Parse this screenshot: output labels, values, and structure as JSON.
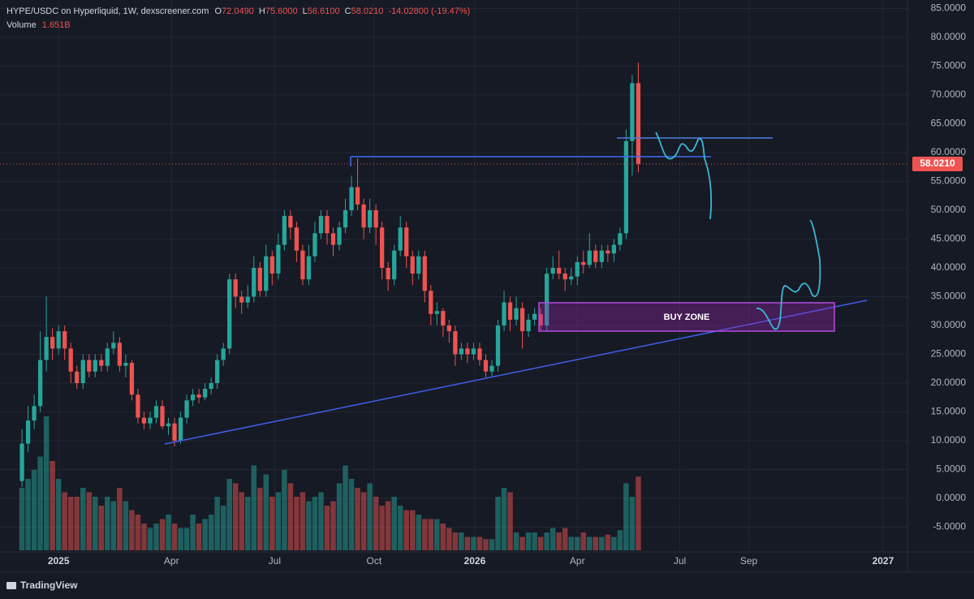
{
  "chart_data": {
    "type": "candlestick",
    "symbol": "HYPE/USDC on Hyperliquid, 1W, dexscreener.com",
    "ohlc": [
      "O",
      "72.0490",
      "H",
      "75.6000",
      "L",
      "56.6100",
      "C",
      "58.0210",
      "-14.02800 (-19.47%)"
    ],
    "volume_label": "Volume",
    "volume_last_label": "1.651B",
    "last_value_label": "58.0210",
    "annotation": "BUY ZONE",
    "brand": "TradingView",
    "up_color": "#26a69a",
    "down_color": "#ef5350",
    "grid": true,
    "ylim": [
      -9.3,
      86.48
    ],
    "yticks": [
      {
        "value": 85,
        "label": "85.0000"
      },
      {
        "value": 80,
        "label": "80.0000"
      },
      {
        "value": 75,
        "label": "75.0000"
      },
      {
        "value": 70,
        "label": "70.0000"
      },
      {
        "value": 65,
        "label": "65.0000"
      },
      {
        "value": 60,
        "label": "60.0000"
      },
      {
        "value": 55,
        "label": "55.0000"
      },
      {
        "value": 50,
        "label": "50.0000"
      },
      {
        "value": 45,
        "label": "45.0000"
      },
      {
        "value": 40,
        "label": "40.0000"
      },
      {
        "value": 35,
        "label": "35.0000"
      },
      {
        "value": 30,
        "label": "30.0000"
      },
      {
        "value": 25,
        "label": "25.0000"
      },
      {
        "value": 20,
        "label": "20.0000"
      },
      {
        "value": 15,
        "label": "15.0000"
      },
      {
        "value": 10,
        "label": "10.0000"
      },
      {
        "value": 5,
        "label": "5.0000"
      },
      {
        "value": 0,
        "label": "0.0000"
      },
      {
        "value": -5,
        "label": "-5.0000"
      }
    ],
    "xlim": [
      -3.6,
      145.1
    ],
    "xticks": [
      {
        "value": 6.0,
        "label": "2025"
      },
      {
        "value": 24.5,
        "label": "Apr"
      },
      {
        "value": 41.4,
        "label": "Jul"
      },
      {
        "value": 57.7,
        "label": "Oct"
      },
      {
        "value": 74.2,
        "label": "2026"
      },
      {
        "value": 91.0,
        "label": "Apr"
      },
      {
        "value": 107.8,
        "label": "Jul"
      },
      {
        "value": 119.1,
        "label": "Sep"
      },
      {
        "value": 141.1,
        "label": "2027"
      }
    ],
    "open": [
      3,
      9.5,
      13.5,
      16,
      24,
      28,
      26,
      29,
      26,
      22,
      20,
      24,
      22,
      24,
      23,
      26,
      27,
      23,
      23.5,
      18,
      14,
      13,
      14,
      16,
      12.5,
      13,
      10,
      14,
      17,
      18,
      17.5,
      19,
      20,
      24,
      26,
      38,
      35,
      34,
      35,
      40,
      36,
      42,
      39,
      44,
      49,
      47,
      43,
      38,
      42,
      46,
      49,
      46,
      44,
      47,
      50,
      54,
      51,
      47,
      50,
      47,
      40,
      38,
      43,
      47,
      42,
      39,
      42,
      36,
      32,
      32.5,
      30,
      29,
      25,
      26,
      25,
      26,
      24,
      22,
      23,
      30,
      34,
      31,
      33,
      29,
      31,
      32,
      30,
      39,
      40,
      39,
      38,
      38.5,
      41,
      40.5,
      43,
      41,
      43,
      42.5,
      44,
      46,
      62,
      72.049
    ],
    "high": [
      12,
      16,
      18,
      29,
      35,
      29.5,
      30,
      30,
      27,
      23,
      25,
      25,
      25,
      25,
      27,
      29,
      28,
      25,
      24,
      19,
      15,
      15,
      17,
      17,
      14,
      14,
      15,
      18,
      19,
      19,
      20,
      21,
      25,
      27,
      39,
      39,
      36,
      37,
      42,
      41,
      44,
      43,
      46,
      50,
      50,
      48,
      44,
      44,
      48,
      50,
      50,
      47,
      48,
      52,
      56,
      59,
      52,
      52,
      51,
      48,
      41,
      44,
      49,
      48,
      43,
      43,
      43,
      37,
      34,
      33,
      31,
      30,
      27,
      27,
      27,
      27,
      25,
      24,
      31,
      36,
      35,
      35,
      34,
      32,
      33,
      33,
      40,
      42,
      43,
      40,
      40,
      42,
      43,
      46,
      44,
      44,
      44,
      45,
      47,
      64,
      73.5,
      75.6
    ],
    "low": [
      2,
      8,
      12,
      15,
      22,
      24,
      25,
      24,
      20,
      19,
      19,
      21,
      21,
      22,
      22,
      25,
      22,
      21,
      17,
      13,
      12,
      12,
      13,
      12,
      11,
      9,
      9.5,
      13,
      16,
      16.5,
      17,
      18,
      19,
      23,
      25,
      33,
      32,
      33,
      34,
      35,
      35,
      37,
      38,
      43,
      45,
      41,
      37,
      37,
      41,
      45,
      44,
      42,
      43,
      46,
      49,
      50,
      45,
      46,
      44,
      38,
      36,
      37,
      42,
      40,
      37,
      38,
      34,
      30,
      30,
      28,
      27,
      23,
      24,
      23.5,
      24,
      23,
      21,
      21,
      22,
      29,
      29,
      30,
      26,
      28,
      30,
      29,
      29,
      38,
      38,
      36,
      37,
      37,
      39,
      40,
      40,
      40,
      41,
      41,
      43,
      45,
      56,
      56.61
    ],
    "close": [
      9.5,
      13.5,
      16,
      24,
      28,
      26,
      29,
      26,
      22,
      20,
      24,
      22,
      24,
      23,
      26,
      27,
      23,
      23.5,
      18,
      14,
      13,
      14,
      16,
      12.5,
      13,
      10,
      14,
      17,
      18,
      17.5,
      19,
      20,
      24,
      26,
      38,
      35,
      34,
      35,
      40,
      36,
      42,
      39,
      44,
      49,
      47,
      43,
      38,
      42,
      46,
      49,
      46,
      44,
      47,
      50,
      54,
      51,
      47,
      50,
      47,
      40,
      38,
      43,
      47,
      42,
      39,
      42,
      36,
      32,
      32.5,
      30,
      29,
      25,
      26,
      25,
      26,
      24,
      22,
      23,
      30,
      34,
      31,
      33,
      29,
      31,
      32,
      30,
      39,
      40,
      39,
      38,
      38.5,
      41,
      40.5,
      43,
      41,
      43,
      42.5,
      44,
      46,
      62,
      72.049,
      58.021
    ],
    "volume": [
      1.4,
      1.6,
      1.8,
      2.1,
      3.0,
      2.0,
      1.6,
      1.3,
      1.2,
      1.2,
      1.4,
      1.3,
      1.2,
      1.0,
      1.2,
      1.1,
      1.4,
      1.1,
      0.9,
      0.8,
      0.6,
      0.5,
      0.6,
      0.7,
      0.8,
      0.6,
      0.5,
      0.5,
      0.8,
      0.6,
      0.7,
      0.8,
      1.2,
      1.0,
      1.6,
      1.5,
      1.3,
      1.2,
      1.9,
      1.4,
      1.7,
      1.2,
      1.3,
      1.8,
      1.5,
      1.2,
      1.3,
      1.1,
      1.2,
      1.3,
      1.0,
      1.1,
      1.5,
      1.9,
      1.6,
      1.4,
      1.3,
      1.5,
      1.2,
      1.0,
      1.1,
      1.2,
      1.0,
      0.9,
      0.9,
      0.8,
      0.7,
      0.7,
      0.7,
      0.6,
      0.5,
      0.4,
      0.4,
      0.3,
      0.3,
      0.3,
      0.25,
      0.25,
      1.2,
      1.4,
      1.3,
      0.4,
      0.3,
      0.4,
      0.4,
      0.3,
      0.4,
      0.5,
      0.4,
      0.5,
      0.3,
      0.3,
      0.4,
      0.3,
      0.3,
      0.3,
      0.35,
      0.3,
      0.45,
      1.5,
      1.2,
      1.651
    ]
  }
}
